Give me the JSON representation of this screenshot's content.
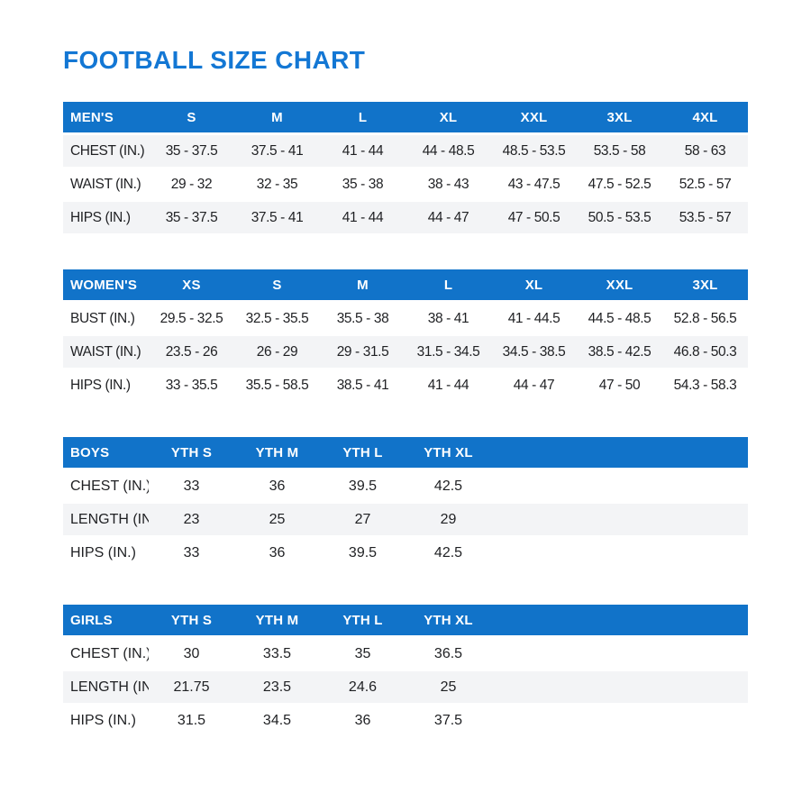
{
  "page_title": "FOOTBALL SIZE CHART",
  "colors": {
    "title_blue": "#1377d4",
    "header_blue": "#1173c9",
    "stripe_gray": "#f3f4f6",
    "text": "#1f2023"
  },
  "chart_data": [
    {
      "type": "table",
      "group": "mens",
      "columns": [
        "MEN'S",
        "S",
        "M",
        "L",
        "XL",
        "XXL",
        "3XL",
        "4XL"
      ],
      "rows": [
        [
          "CHEST (IN.)",
          "35 - 37.5",
          "37.5 - 41",
          "41 - 44",
          "44 - 48.5",
          "48.5 - 53.5",
          "53.5 - 58",
          "58 - 63"
        ],
        [
          "WAIST (IN.)",
          "29 - 32",
          "32 - 35",
          "35 - 38",
          "38 - 43",
          "43 - 47.5",
          "47.5 - 52.5",
          "52.5 - 57"
        ],
        [
          "HIPS (IN.)",
          "35 - 37.5",
          "37.5 - 41",
          "41 - 44",
          "44 - 47",
          "47 - 50.5",
          "50.5 - 53.5",
          "53.5 - 57"
        ]
      ]
    },
    {
      "type": "table",
      "group": "womens",
      "columns": [
        "WOMEN'S",
        "XS",
        "S",
        "M",
        "L",
        "XL",
        "XXL",
        "3XL"
      ],
      "rows": [
        [
          "BUST (IN.)",
          "29.5 - 32.5",
          "32.5 - 35.5",
          "35.5 - 38",
          "38 - 41",
          "41 - 44.5",
          "44.5 - 48.5",
          "52.8 - 56.5"
        ],
        [
          "WAIST (IN.)",
          "23.5 - 26",
          "26 - 29",
          "29 - 31.5",
          "31.5 - 34.5",
          "34.5 - 38.5",
          "38.5 - 42.5",
          "46.8 - 50.3"
        ],
        [
          "HIPS (IN.)",
          "33 - 35.5",
          "35.5 - 58.5",
          "38.5 - 41",
          "41 - 44",
          "44 - 47",
          "47 - 50",
          "54.3 - 58.3"
        ]
      ]
    },
    {
      "type": "table",
      "group": "boys",
      "columns": [
        "BOYS",
        "YTH S",
        "YTH M",
        "YTH L",
        "YTH XL"
      ],
      "rows": [
        [
          "CHEST (IN.)",
          "33",
          "36",
          "39.5",
          "42.5"
        ],
        [
          "LENGTH (IN.)",
          "23",
          "25",
          "27",
          "29"
        ],
        [
          "HIPS (IN.)",
          "33",
          "36",
          "39.5",
          "42.5"
        ]
      ]
    },
    {
      "type": "table",
      "group": "girls",
      "columns": [
        "GIRLS",
        "YTH S",
        "YTH M",
        "YTH L",
        "YTH XL"
      ],
      "rows": [
        [
          "CHEST (IN.)",
          "30",
          "33.5",
          "35",
          "36.5"
        ],
        [
          "LENGTH (IN.)",
          "21.75",
          "23.5",
          "24.6",
          "25"
        ],
        [
          "HIPS (IN.)",
          "31.5",
          "34.5",
          "36",
          "37.5"
        ]
      ]
    }
  ]
}
